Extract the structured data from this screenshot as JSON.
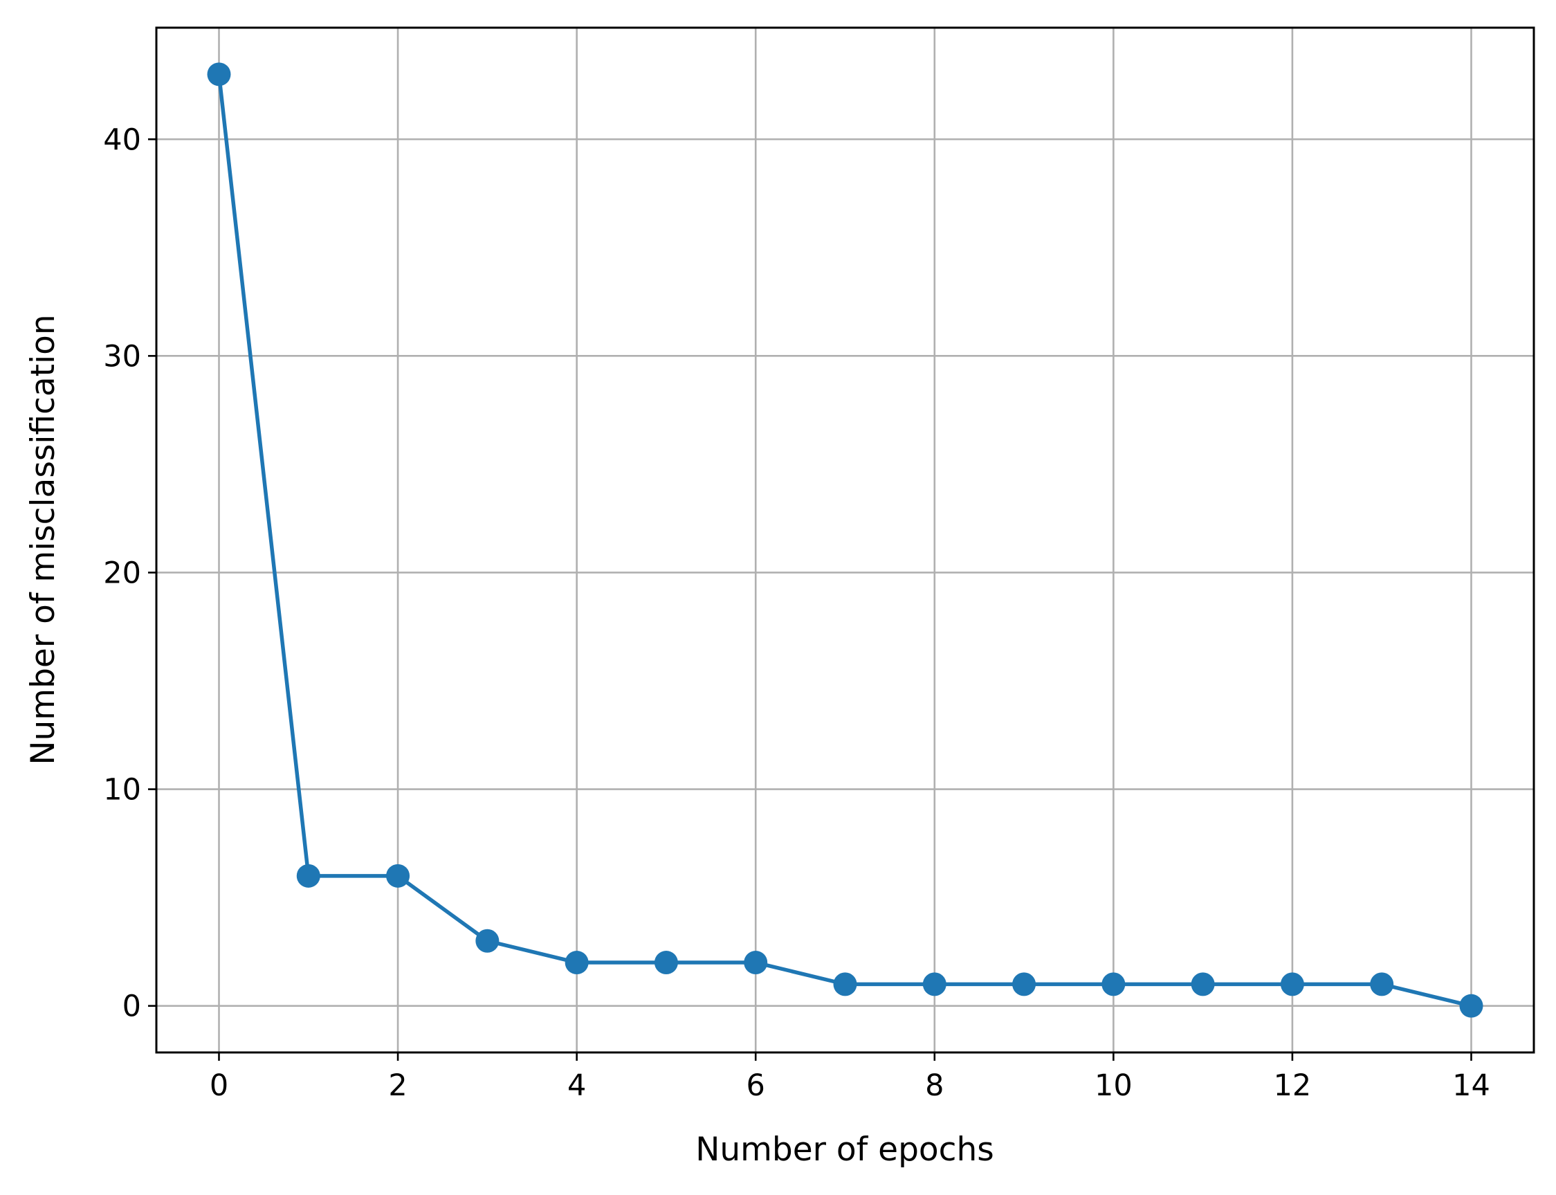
{
  "chart_data": {
    "type": "line",
    "title": "",
    "xlabel": "Number of epochs",
    "ylabel": "Number of misclassification",
    "x": [
      0,
      1,
      2,
      3,
      4,
      5,
      6,
      7,
      8,
      9,
      10,
      11,
      12,
      13,
      14
    ],
    "series": [
      {
        "values": [
          43,
          6,
          6,
          3,
          2,
          2,
          2,
          1,
          1,
          1,
          1,
          1,
          1,
          1,
          0
        ],
        "color": "#1f77b4",
        "marker": "circle"
      }
    ],
    "xlim": [
      -0.7,
      14.7
    ],
    "ylim": [
      -2.15,
      45.15
    ],
    "xticks": [
      0,
      2,
      4,
      6,
      8,
      10,
      12,
      14
    ],
    "xtick_labels": [
      "0",
      "2",
      "4",
      "6",
      "8",
      "10",
      "12",
      "14"
    ],
    "yticks": [
      0,
      10,
      20,
      30,
      40
    ],
    "ytick_labels": [
      "0",
      "10",
      "20",
      "30",
      "40"
    ],
    "grid": true,
    "grid_color": "#b0b0b0",
    "legend": "none"
  }
}
